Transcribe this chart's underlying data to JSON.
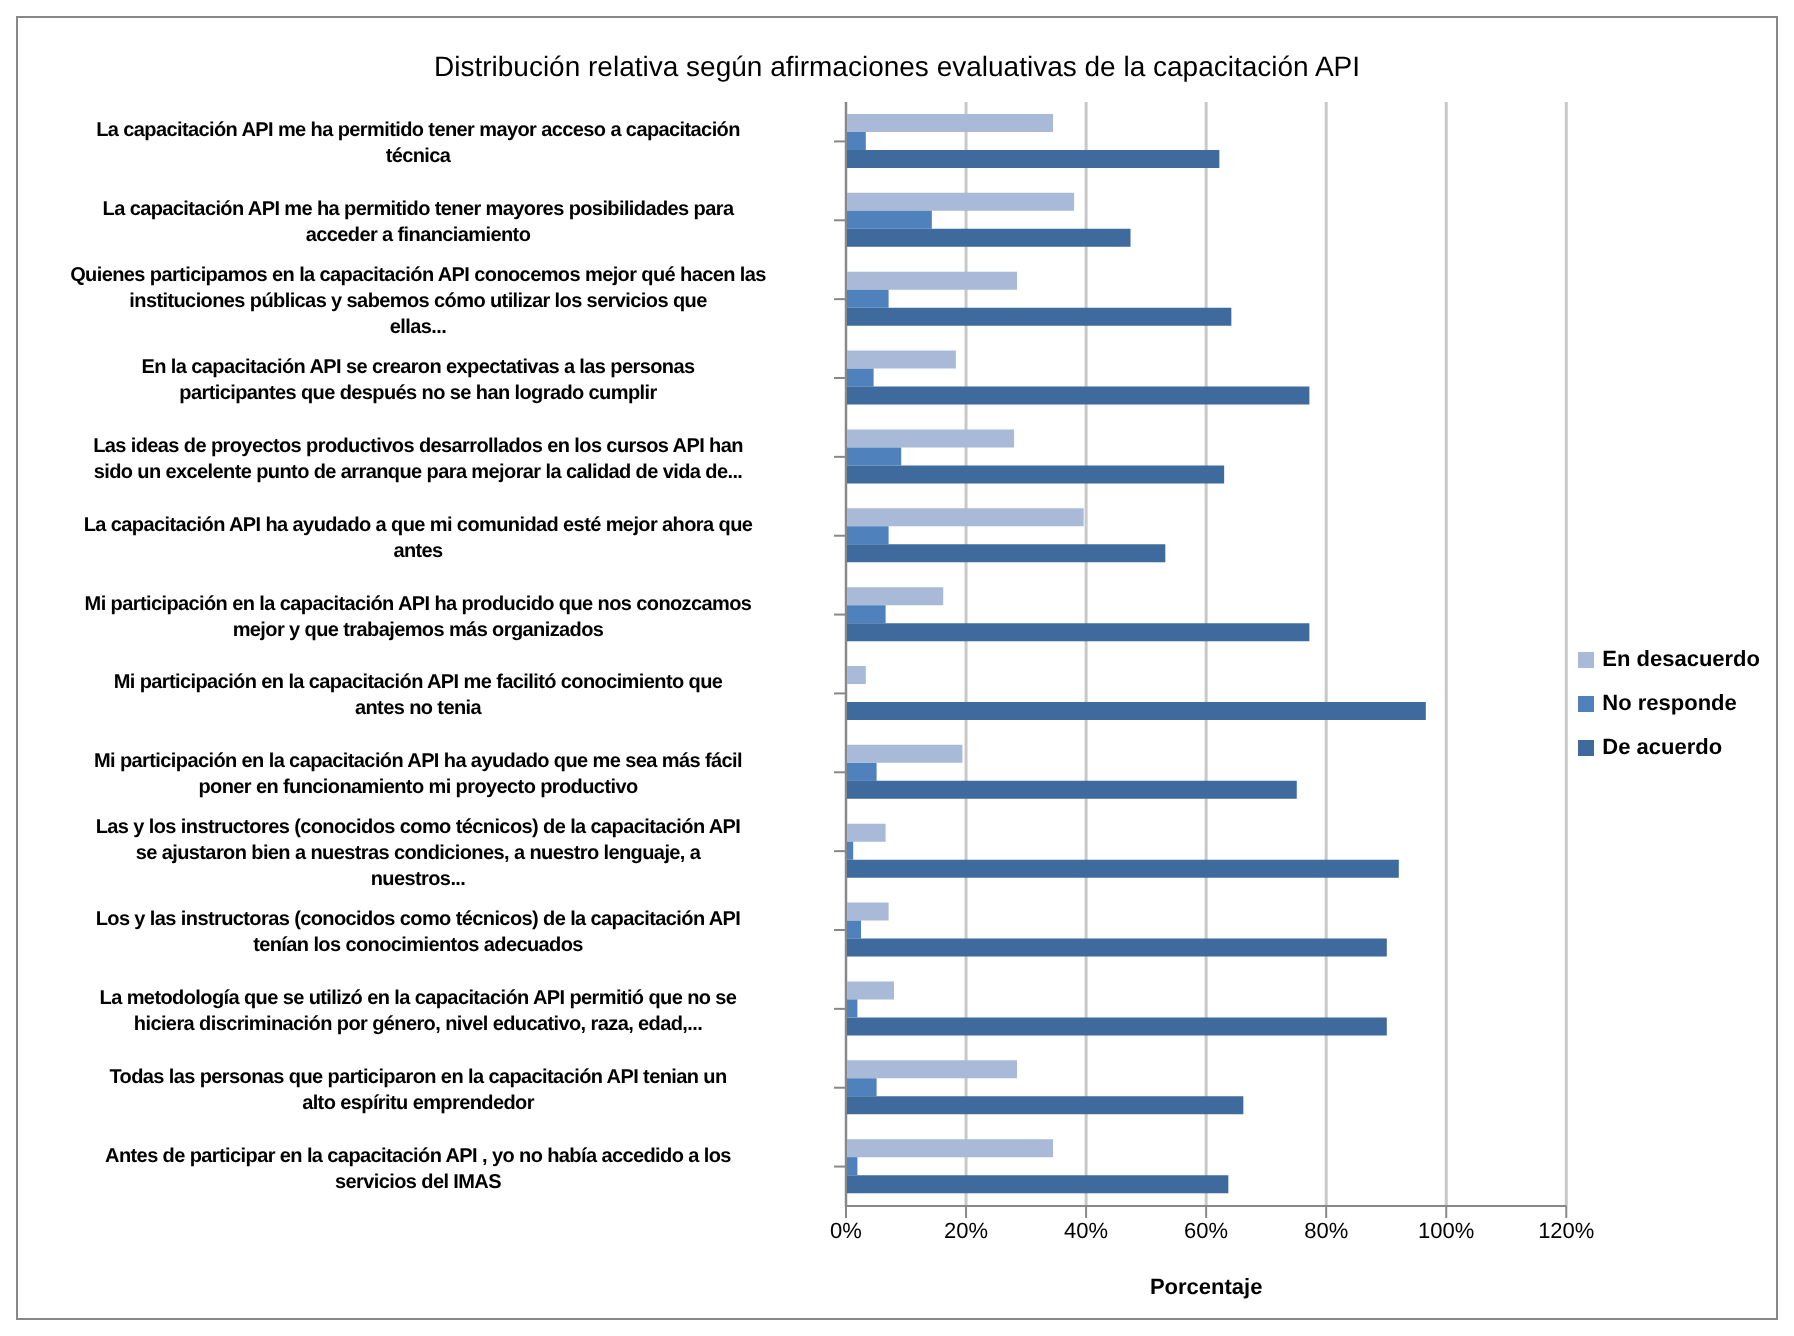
{
  "chart_data": {
    "type": "bar",
    "orientation": "horizontal",
    "title": "Distribución relativa según afirmaciones evaluativas de la capacitación API",
    "xlabel": "Porcentaje",
    "categories": [
      "La capacitación API me ha permitido tener mayor  acceso a capacitación técnica",
      "La capacitación API me ha permitido tener mayores  posibilidades para acceder a financiamiento",
      "Quienes participamos en la capacitación API  conocemos mejor qué hacen las instituciones públicas   y sabemos cómo utilizar los servicios que ellas...",
      "En la capacitación API se crearon expectativas a las  personas participantes que después no se han logrado   cumplir",
      "Las ideas de proyectos productivos  desarrollados en los cursos API han sido un excelente  punto de arranque para mejorar la calidad de vida de...",
      "La capacitación API ha ayudado a que mi  comunidad esté mejor ahora que antes",
      "Mi participación en la capacitación API  ha producido que nos conozcamos mejor y que trabajemos más organizados",
      "Mi participación en la capacitación API me facilitó  conocimiento que antes no tenia",
      "Mi participación en la capacitación API  ha  ayudado que me sea más fácil poner en funcionamiento mi proyecto productivo",
      "Las y los instructores (conocidos como técnicos)  de la capacitación API se ajustaron bien a nuestras  condiciones, a nuestro lenguaje, a nuestros...",
      "Los y las instructoras (conocidos como técnicos)  de la capacitación API tenían los conocimientos adecuados",
      "La metodología que se utilizó en la capacitación  API permitió que no se hiciera discriminación por género, nivel educativo, raza, edad,...",
      "Todas las personas que participaron  en la  capacitación API tenian un alto espíritu emprendedor",
      "Antes de participar en la capacitación API , yo no  había accedido a los servicios del IMAS"
    ],
    "series": [
      {
        "name": "En desacuerdo",
        "color": "#a9b9d8",
        "values": [
          34.5,
          38,
          28.5,
          18.3,
          28,
          39.6,
          16.2,
          3.3,
          19.4,
          6.6,
          7.1,
          8,
          28.5,
          34.5
        ]
      },
      {
        "name": "No responde",
        "color": "#4f81bd",
        "values": [
          3.3,
          14.3,
          7.1,
          4.6,
          9.2,
          7.1,
          6.6,
          0,
          5.1,
          1.2,
          2.5,
          1.9,
          5.1,
          1.9
        ]
      },
      {
        "name": "De acuerdo",
        "color": "#3f6a9d",
        "values": [
          62.2,
          47.4,
          64.2,
          77.2,
          63,
          53.2,
          77.2,
          96.6,
          75.1,
          92.1,
          90.1,
          90.1,
          66.2,
          63.7
        ]
      }
    ],
    "xlim": [
      0,
      120
    ],
    "xticks": [
      {
        "value": 0,
        "label": "0%"
      },
      {
        "value": 20,
        "label": "20%"
      },
      {
        "value": 40,
        "label": "40%"
      },
      {
        "value": 60,
        "label": "60%"
      },
      {
        "value": 80,
        "label": "80%"
      },
      {
        "value": 100,
        "label": "100%"
      },
      {
        "value": 120,
        "label": "120%"
      }
    ],
    "grid": "x",
    "legend": "right"
  }
}
